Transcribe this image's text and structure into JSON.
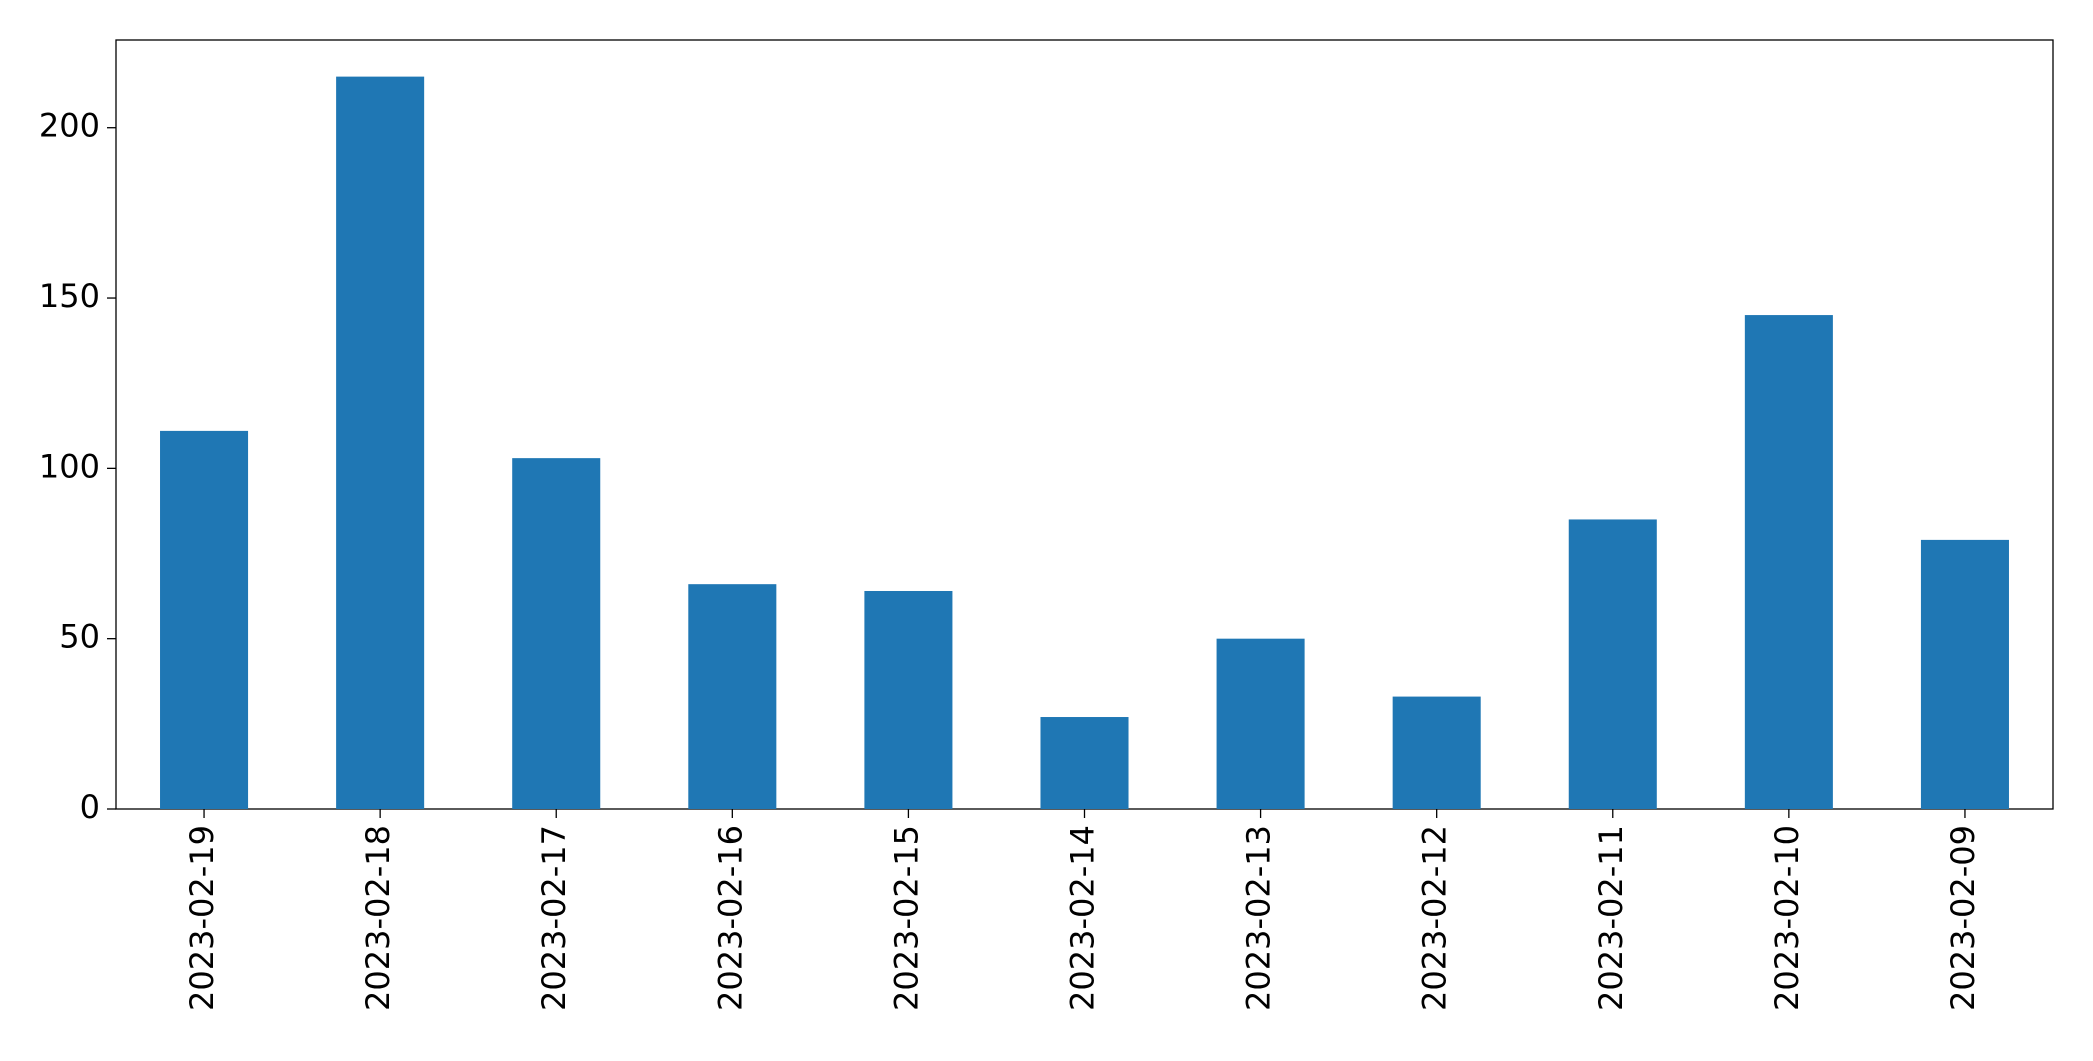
{
  "chart_data": {
    "type": "bar",
    "categories": [
      "2023-02-19",
      "2023-02-18",
      "2023-02-17",
      "2023-02-16",
      "2023-02-15",
      "2023-02-14",
      "2023-02-13",
      "2023-02-12",
      "2023-02-11",
      "2023-02-10",
      "2023-02-09"
    ],
    "values": [
      111,
      215,
      103,
      66,
      64,
      27,
      50,
      33,
      85,
      145,
      79
    ],
    "color": "#1f77b4",
    "ylim": [
      0,
      225.75
    ],
    "yticks": [
      0,
      50,
      100,
      150,
      200
    ],
    "grid": false
  }
}
